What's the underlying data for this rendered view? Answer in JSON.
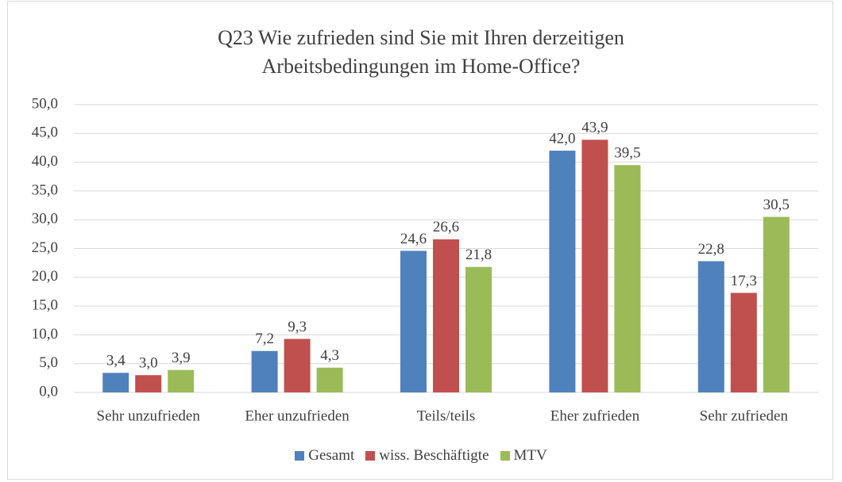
{
  "chart_data": {
    "type": "bar",
    "title": "Q23 Wie zufrieden sind Sie mit Ihren derzeitigen Arbeitsbedingungen im Home-Office?",
    "categories": [
      "Sehr unzufrieden",
      "Eher unzufrieden",
      "Teils/teils",
      "Eher zufrieden",
      "Sehr zufrieden"
    ],
    "series": [
      {
        "name": "Gesamt",
        "color": "#4f81bd",
        "values": [
          3.4,
          7.2,
          24.6,
          42.0,
          22.8
        ],
        "value_labels": [
          "3,4",
          "7,2",
          "24,6",
          "42,0",
          "22,8"
        ]
      },
      {
        "name": "wiss. Beschäftigte",
        "color": "#c0504d",
        "values": [
          3.0,
          9.3,
          26.6,
          43.9,
          17.3
        ],
        "value_labels": [
          "3,0",
          "9,3",
          "26,6",
          "43,9",
          "17,3"
        ]
      },
      {
        "name": "MTV",
        "color": "#9bbb59",
        "values": [
          3.9,
          4.3,
          21.8,
          39.5,
          30.5
        ],
        "value_labels": [
          "3,9",
          "4,3",
          "21,8",
          "39,5",
          "30,5"
        ]
      }
    ],
    "ylim": [
      0,
      50
    ],
    "yticks": [
      {
        "value": 0,
        "label": "0,0"
      },
      {
        "value": 5,
        "label": "5,0"
      },
      {
        "value": 10,
        "label": "10,0"
      },
      {
        "value": 15,
        "label": "15,0"
      },
      {
        "value": 20,
        "label": "20,0"
      },
      {
        "value": 25,
        "label": "25,0"
      },
      {
        "value": 30,
        "label": "30,0"
      },
      {
        "value": 35,
        "label": "35,0"
      },
      {
        "value": 40,
        "label": "40,0"
      },
      {
        "value": 45,
        "label": "45,0"
      },
      {
        "value": 50,
        "label": "50,0"
      }
    ],
    "grid": true,
    "legend": "bottom"
  }
}
